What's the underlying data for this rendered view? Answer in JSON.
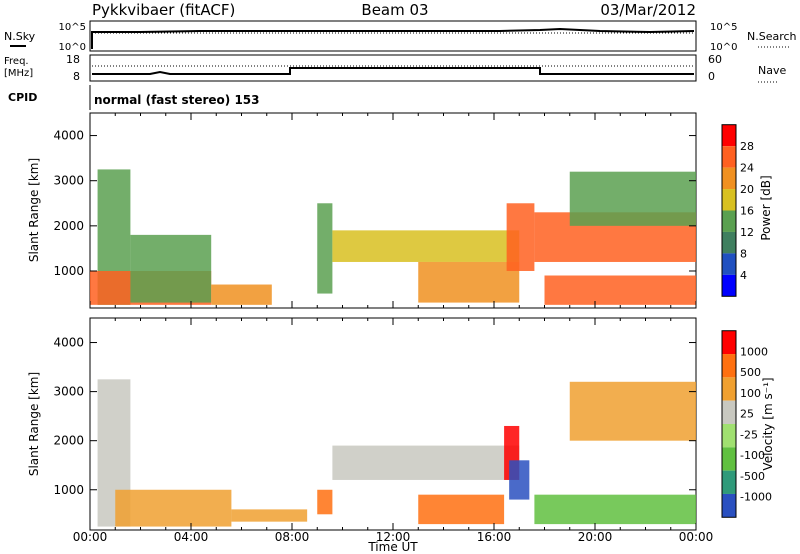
{
  "header": {
    "title_left": "Pykkvibaer (fitACF)",
    "title_center": "Beam 03",
    "title_right": "03/Mar/2012"
  },
  "status_panels": {
    "nsky_label": "N.Sky",
    "nsearch_label": "N.Search",
    "noise_ticks": [
      "10^5",
      "10^0"
    ],
    "noise_ticks_right": [
      "10^5",
      "10^0"
    ],
    "freq_label_line1": "Freq.",
    "freq_label_line2": "[MHz]",
    "freq_ticks": [
      "18",
      "8"
    ],
    "nave_label": "Nave",
    "nave_ticks": [
      "60",
      "0"
    ],
    "cpid_label": "CPID",
    "cpid_text": "normal (fast stereo) 153"
  },
  "chart_data": [
    {
      "type": "heatmap",
      "panel": "power",
      "ylabel": "Slant Range [km]",
      "ylim": [
        180,
        4500
      ],
      "yticks": [
        "1000",
        "2000",
        "3000",
        "4000"
      ],
      "colorbar_label": "Power [dB]",
      "colorbar_ticks": [
        "28",
        "24",
        "20",
        "16",
        "12",
        "8",
        "4"
      ],
      "colors": [
        "#0000ff",
        "#2050c0",
        "#3f7f5f",
        "#5aa050",
        "#d8c020",
        "#f09020",
        "#ff6020",
        "#ff0000"
      ],
      "regions": [
        {
          "t": [
            0.3,
            1.6
          ],
          "r": [
            250,
            3250
          ],
          "level": 3
        },
        {
          "t": [
            0.0,
            4.8
          ],
          "r": [
            250,
            1000
          ],
          "level": 6
        },
        {
          "t": [
            1.6,
            4.8
          ],
          "r": [
            300,
            1800
          ],
          "level": 3
        },
        {
          "t": [
            4.8,
            7.2
          ],
          "r": [
            250,
            700
          ],
          "level": 5
        },
        {
          "t": [
            9.0,
            9.6
          ],
          "r": [
            500,
            2500
          ],
          "level": 3
        },
        {
          "t": [
            9.6,
            17.0
          ],
          "r": [
            1200,
            1900
          ],
          "level": 4
        },
        {
          "t": [
            13.0,
            17.0
          ],
          "r": [
            300,
            1200
          ],
          "level": 5
        },
        {
          "t": [
            16.5,
            17.6
          ],
          "r": [
            1000,
            2500
          ],
          "level": 6
        },
        {
          "t": [
            17.6,
            24.0
          ],
          "r": [
            1200,
            2300
          ],
          "level": 6
        },
        {
          "t": [
            18.0,
            24.0
          ],
          "r": [
            250,
            900
          ],
          "level": 6
        },
        {
          "t": [
            19.0,
            24.0
          ],
          "r": [
            2000,
            3200
          ],
          "level": 3
        }
      ]
    },
    {
      "type": "heatmap",
      "panel": "velocity",
      "xlabel": "Time UT",
      "ylabel": "Slant Range [km]",
      "ylim": [
        180,
        4500
      ],
      "yticks": [
        "1000",
        "2000",
        "3000",
        "4000"
      ],
      "xlim_hours": [
        0,
        24
      ],
      "xticks": [
        "00:00",
        "04:00",
        "08:00",
        "12:00",
        "16:00",
        "20:00",
        "00:00"
      ],
      "colorbar_label": "Velocity [m s⁻¹]",
      "colorbar_ticks": [
        "1000",
        "500",
        "100",
        "25",
        "-25",
        "-100",
        "-500",
        "-1000"
      ],
      "colors": [
        "#2a50c0",
        "#2f9a7a",
        "#60c040",
        "#a0e070",
        "#c8c8c0",
        "#f0a030",
        "#ff7010",
        "#ff0000"
      ],
      "regions": [
        {
          "t": [
            0.3,
            1.6
          ],
          "r": [
            250,
            3250
          ],
          "level": 4
        },
        {
          "t": [
            1.0,
            5.6
          ],
          "r": [
            250,
            1000
          ],
          "level": 5
        },
        {
          "t": [
            5.6,
            8.6
          ],
          "r": [
            350,
            600
          ],
          "level": 5
        },
        {
          "t": [
            9.0,
            9.6
          ],
          "r": [
            500,
            1000
          ],
          "level": 6
        },
        {
          "t": [
            9.6,
            17.0
          ],
          "r": [
            1200,
            1900
          ],
          "level": 4
        },
        {
          "t": [
            13.0,
            16.4
          ],
          "r": [
            300,
            900
          ],
          "level": 6
        },
        {
          "t": [
            16.4,
            17.0
          ],
          "r": [
            1200,
            2300
          ],
          "level": 7
        },
        {
          "t": [
            16.6,
            17.4
          ],
          "r": [
            800,
            1600
          ],
          "level": 0
        },
        {
          "t": [
            17.6,
            24.0
          ],
          "r": [
            300,
            900
          ],
          "level": 2
        },
        {
          "t": [
            19.0,
            24.0
          ],
          "r": [
            2000,
            3200
          ],
          "level": 5
        }
      ]
    }
  ]
}
